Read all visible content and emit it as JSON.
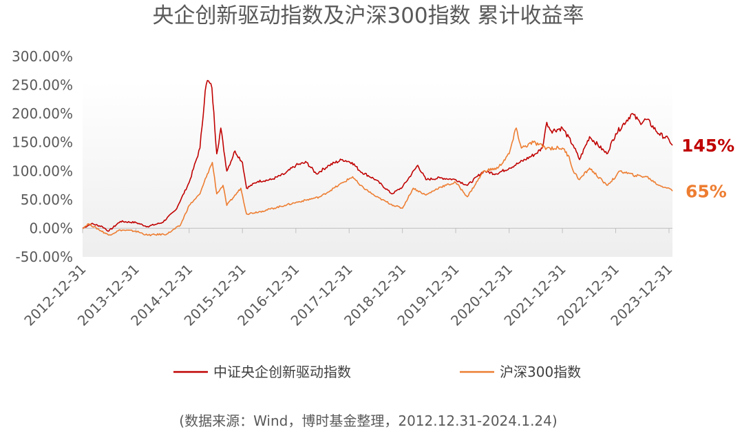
{
  "chart_data": {
    "type": "line",
    "title": "央企创新驱动指数及沪深300指数 累计收益率",
    "ylim": [
      -50,
      300
    ],
    "y_ticks": [
      "300.00%",
      "250.00%",
      "200.00%",
      "150.00%",
      "100.00%",
      "50.00%",
      "0.00%",
      "-50.00%"
    ],
    "x_ticks": [
      "2012-12-31",
      "2013-12-31",
      "2014-12-31",
      "2015-12-31",
      "2016-12-31",
      "2017-12-31",
      "2018-12-31",
      "2019-12-31",
      "2020-12-31",
      "2021-12-31",
      "2022-12-31",
      "2023-12-31"
    ],
    "x_range": [
      "2012-12-31",
      "2024-01-24"
    ],
    "grid": false,
    "legend_position": "bottom",
    "series": [
      {
        "name": "中证央企创新驱动指数",
        "color": "#C00000",
        "end_label": "145%",
        "values": [
          [
            "2012-12-31",
            0
          ],
          [
            "2013-03-01",
            8
          ],
          [
            "2013-05-15",
            3
          ],
          [
            "2013-06-28",
            -5
          ],
          [
            "2013-09-15",
            12
          ],
          [
            "2013-12-31",
            10
          ],
          [
            "2014-03-20",
            3
          ],
          [
            "2014-06-30",
            10
          ],
          [
            "2014-09-30",
            32
          ],
          [
            "2014-12-31",
            80
          ],
          [
            "2015-03-15",
            140
          ],
          [
            "2015-04-20",
            240
          ],
          [
            "2015-05-05",
            258
          ],
          [
            "2015-06-05",
            245
          ],
          [
            "2015-07-08",
            130
          ],
          [
            "2015-08-05",
            175
          ],
          [
            "2015-09-15",
            100
          ],
          [
            "2015-11-10",
            135
          ],
          [
            "2015-12-31",
            115
          ],
          [
            "2016-01-28",
            70
          ],
          [
            "2016-04-15",
            82
          ],
          [
            "2016-07-15",
            85
          ],
          [
            "2016-10-15",
            95
          ],
          [
            "2016-12-31",
            110
          ],
          [
            "2017-03-15",
            115
          ],
          [
            "2017-05-20",
            95
          ],
          [
            "2017-08-15",
            110
          ],
          [
            "2017-11-15",
            120
          ],
          [
            "2018-01-20",
            115
          ],
          [
            "2018-03-15",
            100
          ],
          [
            "2018-06-30",
            85
          ],
          [
            "2018-10-20",
            60
          ],
          [
            "2018-12-31",
            72
          ],
          [
            "2019-04-15",
            110
          ],
          [
            "2019-06-10",
            85
          ],
          [
            "2019-09-15",
            88
          ],
          [
            "2019-12-31",
            85
          ],
          [
            "2020-03-20",
            75
          ],
          [
            "2020-07-10",
            100
          ],
          [
            "2020-09-30",
            95
          ],
          [
            "2020-12-31",
            105
          ],
          [
            "2021-03-15",
            115
          ],
          [
            "2021-06-30",
            130
          ],
          [
            "2021-08-15",
            140
          ],
          [
            "2021-09-15",
            185
          ],
          [
            "2021-10-15",
            170
          ],
          [
            "2021-12-31",
            175
          ],
          [
            "2022-03-15",
            145
          ],
          [
            "2022-04-27",
            120
          ],
          [
            "2022-07-05",
            160
          ],
          [
            "2022-10-31",
            130
          ],
          [
            "2022-12-31",
            165
          ],
          [
            "2023-04-20",
            200
          ],
          [
            "2023-06-15",
            185
          ],
          [
            "2023-08-01",
            190
          ],
          [
            "2023-10-23",
            165
          ],
          [
            "2023-12-31",
            155
          ],
          [
            "2024-01-24",
            145
          ]
        ]
      },
      {
        "name": "沪深300指数",
        "color": "#ED7D31",
        "end_label": "65%",
        "values": [
          [
            "2012-12-31",
            0
          ],
          [
            "2013-02-10",
            8
          ],
          [
            "2013-06-28",
            -12
          ],
          [
            "2013-09-15",
            -3
          ],
          [
            "2013-12-31",
            -5
          ],
          [
            "2014-03-20",
            -12
          ],
          [
            "2014-07-31",
            -10
          ],
          [
            "2014-10-31",
            5
          ],
          [
            "2014-12-31",
            40
          ],
          [
            "2015-03-15",
            60
          ],
          [
            "2015-05-05",
            95
          ],
          [
            "2015-06-08",
            115
          ],
          [
            "2015-07-08",
            60
          ],
          [
            "2015-08-20",
            75
          ],
          [
            "2015-09-15",
            40
          ],
          [
            "2015-12-20",
            70
          ],
          [
            "2016-01-28",
            25
          ],
          [
            "2016-05-15",
            30
          ],
          [
            "2016-10-15",
            40
          ],
          [
            "2016-12-31",
            45
          ],
          [
            "2017-06-15",
            55
          ],
          [
            "2017-11-20",
            80
          ],
          [
            "2018-01-24",
            90
          ],
          [
            "2018-03-15",
            75
          ],
          [
            "2018-07-05",
            55
          ],
          [
            "2018-10-31",
            40
          ],
          [
            "2018-12-31",
            35
          ],
          [
            "2019-03-15",
            70
          ],
          [
            "2019-06-10",
            58
          ],
          [
            "2019-09-15",
            72
          ],
          [
            "2019-12-31",
            80
          ],
          [
            "2020-03-20",
            55
          ],
          [
            "2020-07-10",
            100
          ],
          [
            "2020-10-15",
            105
          ],
          [
            "2020-12-31",
            130
          ],
          [
            "2021-02-18",
            175
          ],
          [
            "2021-03-25",
            140
          ],
          [
            "2021-06-15",
            150
          ],
          [
            "2021-09-15",
            140
          ],
          [
            "2021-12-31",
            140
          ],
          [
            "2022-02-15",
            125
          ],
          [
            "2022-03-15",
            100
          ],
          [
            "2022-04-27",
            85
          ],
          [
            "2022-07-05",
            105
          ],
          [
            "2022-10-31",
            75
          ],
          [
            "2022-12-31",
            90
          ],
          [
            "2023-01-31",
            100
          ],
          [
            "2023-05-15",
            92
          ],
          [
            "2023-08-01",
            90
          ],
          [
            "2023-10-23",
            75
          ],
          [
            "2023-12-31",
            70
          ],
          [
            "2024-01-24",
            65
          ]
        ]
      }
    ]
  },
  "source_note": "(数据来源：Wind，博时基金整理，2012.12.31-2024.1.24)"
}
